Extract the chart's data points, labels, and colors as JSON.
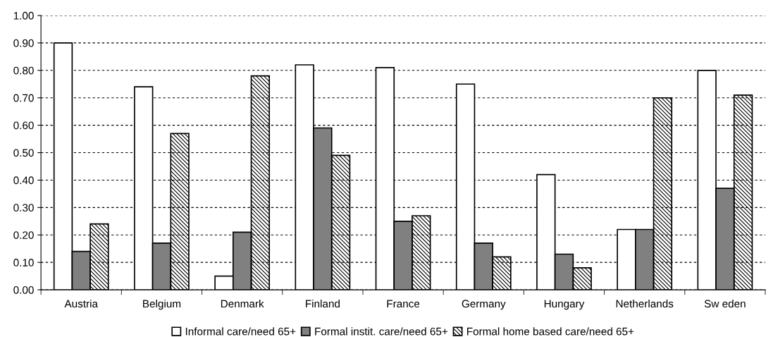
{
  "chart_data": {
    "type": "bar",
    "categories": [
      "Austria",
      "Belgium",
      "Denmark",
      "Finland",
      "France",
      "Germany",
      "Hungary",
      "Netherlands",
      "Sw eden"
    ],
    "series": [
      {
        "name": "Informal care/need 65+",
        "color": "#ffffff",
        "values": [
          0.9,
          0.74,
          0.05,
          0.82,
          0.81,
          0.75,
          0.42,
          0.22,
          0.8
        ]
      },
      {
        "name": "Formal instit. care/need 65+",
        "color": "#808080",
        "values": [
          0.14,
          0.17,
          0.21,
          0.59,
          0.25,
          0.17,
          0.13,
          0.22,
          0.37
        ]
      },
      {
        "name": "Formal home based care/need 65+",
        "color": "#000000",
        "values": [
          0.24,
          0.57,
          0.78,
          0.49,
          0.27,
          0.12,
          0.08,
          0.7,
          0.71
        ]
      }
    ],
    "ylim": [
      0,
      1
    ],
    "yticks": [
      {
        "value": 0,
        "label": "0.00"
      },
      {
        "value": 0.1,
        "label": "0.10"
      },
      {
        "value": 0.2,
        "label": "0.20"
      },
      {
        "value": 0.3,
        "label": "0.30"
      },
      {
        "value": 0.4,
        "label": "0.40"
      },
      {
        "value": 0.5,
        "label": "0.50"
      },
      {
        "value": 0.6,
        "label": "0.60"
      },
      {
        "value": 0.7,
        "label": "0.70"
      },
      {
        "value": 0.8,
        "label": "0.80"
      },
      {
        "value": 0.9,
        "label": "0.90"
      },
      {
        "value": 1,
        "label": "1.00"
      }
    ],
    "grid": "y",
    "legend": "bottom"
  }
}
